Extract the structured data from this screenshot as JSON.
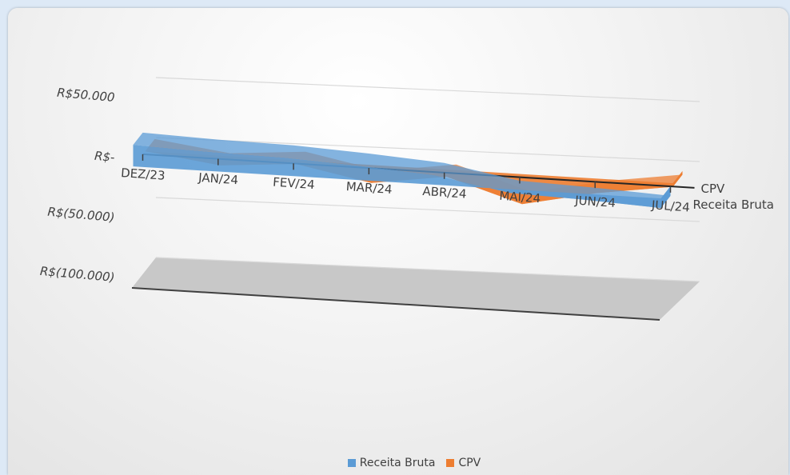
{
  "chart_data": {
    "type": "area",
    "view": "3d",
    "title": "",
    "xlabel": "",
    "ylabel": "",
    "categories": [
      "DEZ/23",
      "JAN/24",
      "FEV/24",
      "MAR/24",
      "ABR/24",
      "MAI/24",
      "JUN/24",
      "JUL/24"
    ],
    "y_ticks": [
      {
        "value": 50000,
        "label": "R$50.000"
      },
      {
        "value": 0,
        "label": "R$-"
      },
      {
        "value": -50000,
        "label": "R$(50.000)"
      },
      {
        "value": -100000,
        "label": "R$(100.000)"
      }
    ],
    "ylim": [
      -100000,
      50000
    ],
    "series": [
      {
        "name": "Receita Bruta",
        "color": "#5b9bd5",
        "values": [
          18000,
          16000,
          15000,
          12000,
          8000,
          -3000,
          -5000,
          -8000
        ]
      },
      {
        "name": "CPV",
        "color": "#ed7d31",
        "values": [
          0,
          -8000,
          -3000,
          -15000,
          -6000,
          -25000,
          -12000,
          -3000
        ]
      }
    ],
    "legend": "bottom",
    "grid": true
  }
}
